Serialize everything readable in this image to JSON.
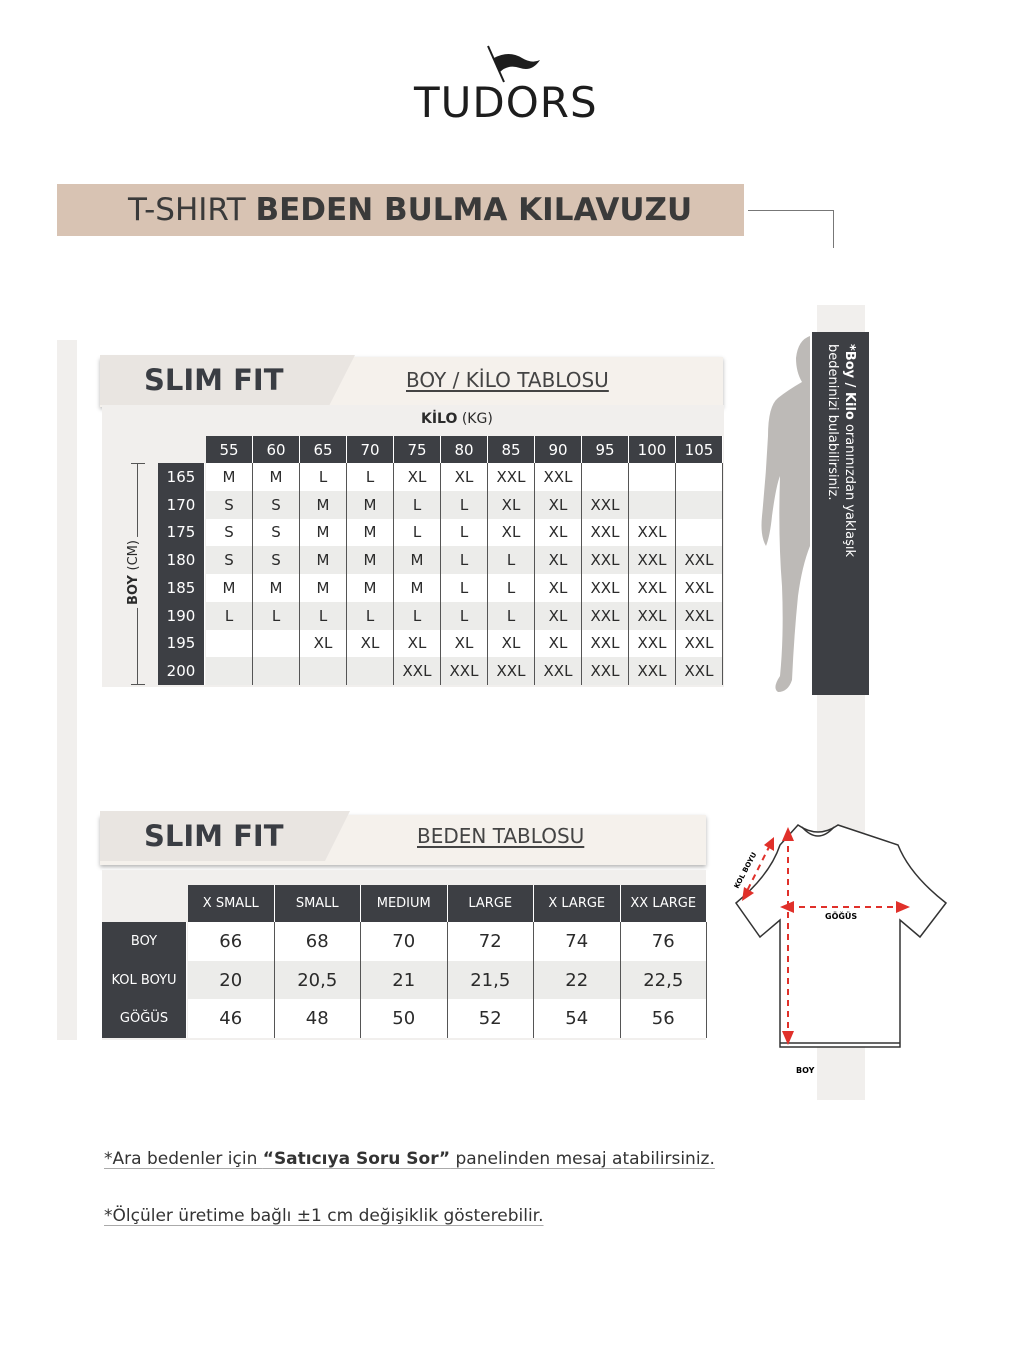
{
  "brand": {
    "logo": "TUDORS"
  },
  "header": {
    "title_light": "T-SHIRT",
    "title_bold": "BEDEN BULMA KILAVUZU"
  },
  "boy_kilo": {
    "fit": "SLIM FIT",
    "subtitle": "BOY / KİLO TABLOSU",
    "kilo_label_bold": "KİLO",
    "kilo_label_unit": "(KG)",
    "boy_label_bold": "BOY",
    "boy_label_unit": "(CM)",
    "weights": [
      "55",
      "60",
      "65",
      "70",
      "75",
      "80",
      "85",
      "90",
      "95",
      "100",
      "105"
    ],
    "rows": [
      {
        "height": "165",
        "sizes": [
          "M",
          "M",
          "L",
          "L",
          "XL",
          "XL",
          "XXL",
          "XXL",
          "",
          "",
          ""
        ]
      },
      {
        "height": "170",
        "sizes": [
          "S",
          "S",
          "M",
          "M",
          "L",
          "L",
          "XL",
          "XL",
          "XXL",
          "",
          ""
        ]
      },
      {
        "height": "175",
        "sizes": [
          "S",
          "S",
          "M",
          "M",
          "L",
          "L",
          "XL",
          "XL",
          "XXL",
          "XXL",
          ""
        ]
      },
      {
        "height": "180",
        "sizes": [
          "S",
          "S",
          "M",
          "M",
          "M",
          "L",
          "L",
          "XL",
          "XXL",
          "XXL",
          "XXL"
        ]
      },
      {
        "height": "185",
        "sizes": [
          "M",
          "M",
          "M",
          "M",
          "M",
          "L",
          "L",
          "XL",
          "XXL",
          "XXL",
          "XXL"
        ]
      },
      {
        "height": "190",
        "sizes": [
          "L",
          "L",
          "L",
          "L",
          "L",
          "L",
          "L",
          "XL",
          "XXL",
          "XXL",
          "XXL"
        ]
      },
      {
        "height": "195",
        "sizes": [
          "",
          "",
          "XL",
          "XL",
          "XL",
          "XL",
          "XL",
          "XL",
          "XXL",
          "XXL",
          "XXL"
        ]
      },
      {
        "height": "200",
        "sizes": [
          "",
          "",
          "",
          "",
          "XXL",
          "XXL",
          "XXL",
          "XXL",
          "XXL",
          "XXL",
          "XXL"
        ]
      }
    ]
  },
  "side_panel": {
    "bold": "*Boy / Kilo",
    "line1": " oranınızdan yaklaşık",
    "line2": "bedeninizi bulabilirsiniz."
  },
  "beden": {
    "fit": "SLIM FIT",
    "subtitle": "BEDEN TABLOSU",
    "sizes": [
      "X SMALL",
      "SMALL",
      "MEDIUM",
      "LARGE",
      "X LARGE",
      "XX LARGE"
    ],
    "rows": [
      {
        "label": "BOY",
        "values": [
          "66",
          "68",
          "70",
          "72",
          "74",
          "76"
        ]
      },
      {
        "label": "KOL BOYU",
        "values": [
          "20",
          "20,5",
          "21",
          "21,5",
          "22",
          "22,5"
        ]
      },
      {
        "label": "GÖĞÜS",
        "values": [
          "46",
          "48",
          "50",
          "52",
          "54",
          "56"
        ]
      }
    ]
  },
  "diagram": {
    "sleeve": "KOL BOYU",
    "chest": "GÖĞÜS",
    "length": "BOY",
    "arrow_color": "#e0302a"
  },
  "notes": {
    "n1_pre": "*Ara bedenler için ",
    "n1_bold": "“Satıcıya Soru Sor”",
    "n1_post": " panelinden mesaj atabilirsiniz.",
    "n2": "*Ölçüler üretime bağlı ±1 cm değişiklik gösterebilir."
  }
}
